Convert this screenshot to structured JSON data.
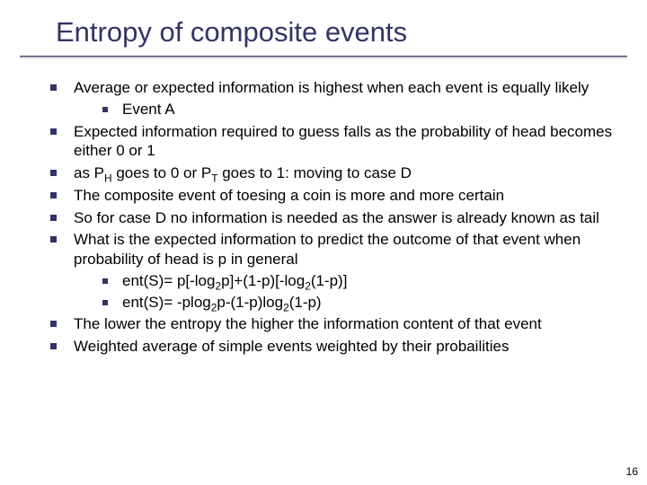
{
  "title": "Entropy of composite events",
  "bullets": {
    "b1": "Average or expected information is  highest when each event is equally likely",
    "b1a": "Event A",
    "b2": "Expected information required to guess falls as the probability of head becomes either 0 or 1",
    "b3_pre": "as P",
    "b3_sub1": "H",
    "b3_mid": " goes to 0 or P",
    "b3_sub2": "T",
    "b3_post": " goes to 1: moving to case D",
    "b4": "The composite event of toesing a coin is more and more certain",
    "b5": "So for case D no information  is needed as the answer is already known as tail",
    "b6": "What is the expected information to predict the outcome of that event when probability of head is p in general",
    "b6a_pre": "ent(S)= p[-log",
    "b6a_sub1": "2",
    "b6a_mid1": "p]+(1-p)[-log",
    "b6a_sub2": "2",
    "b6a_post": "(1-p)]",
    "b6b_pre": "ent(S)= -plog",
    "b6b_sub1": "2",
    "b6b_mid1": "p-(1-p)log",
    "b6b_sub2": "2",
    "b6b_post": "(1-p)",
    "b7": "The lower the entropy the higher the information content of that event",
    "b8": "Weighted average of simple events weighted by their probailities"
  },
  "colors": {
    "title_color": "#333366",
    "bullet_color": "#333366",
    "text_color": "#000000",
    "background": "#ffffff"
  },
  "typography": {
    "title_fontsize": 31,
    "body_fontsize": 17,
    "font_family": "Arial"
  },
  "page_number": "16"
}
